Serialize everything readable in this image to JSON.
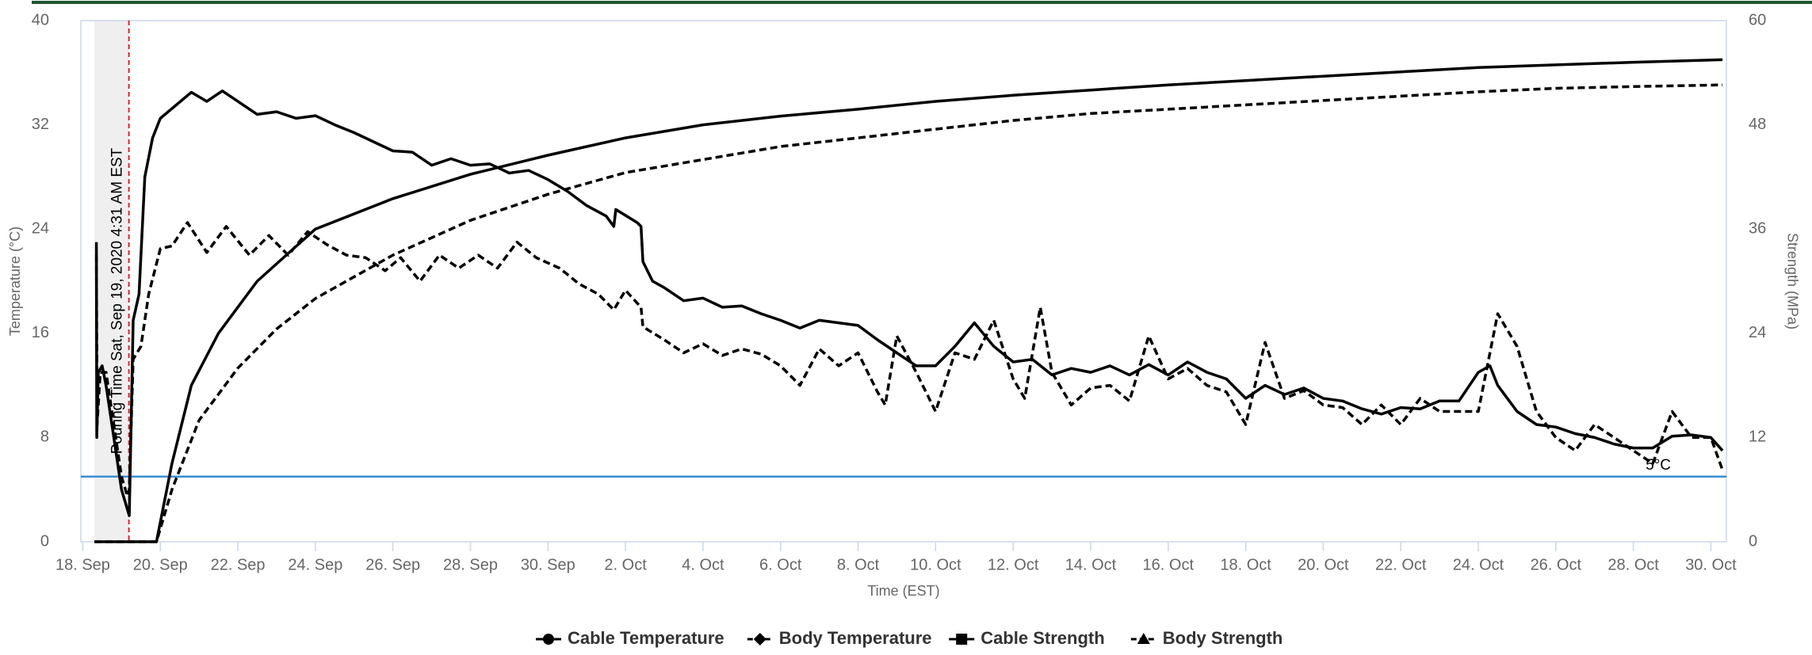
{
  "chart_data": {
    "type": "line",
    "xlabel": "Time (EST)",
    "ylabel": "Temperature (°C)",
    "y2label": "Strength (MPa)",
    "xlim": [
      17.95,
      60.4
    ],
    "xticks": [
      {
        "value": 18,
        "label": "18. Sep"
      },
      {
        "value": 20,
        "label": "20. Sep"
      },
      {
        "value": 22,
        "label": "22. Sep"
      },
      {
        "value": 24,
        "label": "24. Sep"
      },
      {
        "value": 26,
        "label": "26. Sep"
      },
      {
        "value": 28,
        "label": "28. Sep"
      },
      {
        "value": 30,
        "label": "30. Sep"
      },
      {
        "value": 32,
        "label": "2. Oct"
      },
      {
        "value": 34,
        "label": "4. Oct"
      },
      {
        "value": 36,
        "label": "6. Oct"
      },
      {
        "value": 38,
        "label": "8. Oct"
      },
      {
        "value": 40,
        "label": "10. Oct"
      },
      {
        "value": 42,
        "label": "12. Oct"
      },
      {
        "value": 44,
        "label": "14. Oct"
      },
      {
        "value": 46,
        "label": "16. Oct"
      },
      {
        "value": 48,
        "label": "18. Oct"
      },
      {
        "value": 50,
        "label": "20. Oct"
      },
      {
        "value": 52,
        "label": "22. Oct"
      },
      {
        "value": 54,
        "label": "24. Oct"
      },
      {
        "value": 56,
        "label": "26. Oct"
      },
      {
        "value": 58,
        "label": "28. Oct"
      },
      {
        "value": 60,
        "label": "30. Oct"
      }
    ],
    "ylim": [
      0,
      40
    ],
    "yticks": [
      0,
      8,
      16,
      24,
      32,
      40
    ],
    "y2lim": [
      0,
      60
    ],
    "y2ticks": [
      0,
      12,
      24,
      36,
      48,
      60
    ],
    "grid": false,
    "legend": "bottom",
    "shaded_region": [
      18.3,
      19.19
    ],
    "annotations": [
      {
        "text": "Pouring Time Sat, Sep 19, 2020 4:31 AM EST",
        "x": 19.19,
        "color": "#d62728"
      }
    ],
    "reference_lines": [
      {
        "label": "5°C",
        "value": 5,
        "color": "#3a8fd0"
      }
    ],
    "series": [
      {
        "name": "Cable Temperature",
        "color": "#000000",
        "dashed": false,
        "marker": "circle",
        "x": [
          18.35,
          18.36,
          18.4,
          18.5,
          18.6,
          18.8,
          19.0,
          19.2,
          19.3,
          19.45,
          19.6,
          19.8,
          20.0,
          20.8,
          21.2,
          21.6,
          22,
          22.5,
          23,
          23.5,
          24,
          24.5,
          25,
          25.5,
          26,
          26.5,
          27,
          27.5,
          28,
          28.5,
          29,
          29.5,
          30,
          30.5,
          31,
          31.5,
          31.7,
          31.75,
          32.3,
          32.4,
          32.45,
          32.7,
          33,
          33.5,
          34,
          34.5,
          35,
          35.5,
          36,
          36.5,
          37,
          37.5,
          38,
          38.5,
          39,
          39.5,
          40,
          40.5,
          41,
          41.5,
          42,
          42.5,
          43,
          43.5,
          44,
          44.5,
          45,
          45.5,
          46,
          46.5,
          47,
          47.5,
          48,
          48.5,
          49,
          49.5,
          50,
          50.5,
          51,
          51.5,
          52,
          52.5,
          53,
          53.5,
          54,
          54.3,
          54.5,
          55,
          55.5,
          56,
          56.5,
          57,
          57.5,
          58,
          58.5,
          59,
          59.5,
          60,
          60.3
        ],
        "values": [
          23,
          8,
          13,
          13.5,
          12,
          8,
          4,
          2,
          17,
          19,
          28,
          31,
          32.5,
          34.5,
          33.8,
          34.6,
          33.8,
          32.8,
          33,
          32.5,
          32.7,
          32,
          31.4,
          30.7,
          30,
          29.9,
          28.9,
          29.4,
          28.9,
          29,
          28.3,
          28.5,
          27.8,
          26.9,
          25.8,
          25,
          24.2,
          25.5,
          24.5,
          24.2,
          21.5,
          20,
          19.5,
          18.5,
          18.7,
          18,
          18.1,
          17.5,
          17,
          16.4,
          17,
          16.8,
          16.6,
          15.5,
          14.5,
          13.5,
          13.5,
          15,
          16.8,
          15,
          13.8,
          14,
          12.8,
          13.3,
          13,
          13.5,
          12.8,
          13.6,
          12.8,
          13.8,
          13,
          12.5,
          11,
          12,
          11.3,
          11.8,
          11,
          10.8,
          10.2,
          9.8,
          10.3,
          10.2,
          10.8,
          10.8,
          13,
          13.5,
          12,
          10,
          9,
          8.8,
          8.3,
          8,
          7.5,
          7.2,
          7.2,
          8.1,
          8.2,
          8,
          7
        ]
      },
      {
        "name": "Body Temperature",
        "color": "#000000",
        "dashed": true,
        "marker": "diamond",
        "x": [
          18.35,
          18.37,
          18.45,
          18.6,
          18.8,
          19.0,
          19.15,
          19.2,
          19.3,
          19.5,
          19.7,
          20,
          20.3,
          20.7,
          21.2,
          21.7,
          22.3,
          22.8,
          23.3,
          23.8,
          24.3,
          24.8,
          25.3,
          25.8,
          26.2,
          26.7,
          27.2,
          27.7,
          28.2,
          28.7,
          29.2,
          29.7,
          30.3,
          30.8,
          31.3,
          31.7,
          32,
          32.4,
          32.45,
          33,
          33.5,
          34,
          34.5,
          35,
          35.5,
          36,
          36.5,
          37,
          37.5,
          38,
          38.5,
          38.7,
          39,
          39.5,
          40,
          40.5,
          41,
          41.5,
          42,
          42.3,
          42.7,
          43,
          43.5,
          44,
          44.5,
          45,
          45.5,
          46,
          46.5,
          47,
          47.5,
          48,
          48.5,
          49,
          49.5,
          50,
          50.5,
          51,
          51.5,
          52,
          52.5,
          53,
          53.5,
          54,
          54.5,
          55,
          55.5,
          56,
          56.5,
          57,
          57.5,
          58,
          58.5,
          59,
          59.5,
          60,
          60.3
        ],
        "values": [
          22,
          9,
          13,
          13,
          9,
          5,
          3.5,
          4,
          14,
          15,
          19,
          22.5,
          22.7,
          24.5,
          22.2,
          24.2,
          22,
          23.5,
          22,
          23.8,
          22.8,
          22,
          21.8,
          20.8,
          21.8,
          20,
          22,
          21,
          22,
          21,
          23,
          21.8,
          21,
          19.8,
          19,
          17.8,
          19.3,
          18,
          16.5,
          15.5,
          14.5,
          15.2,
          14.3,
          14.8,
          14.4,
          13.5,
          12,
          14.8,
          13.5,
          14.5,
          11.5,
          10.5,
          15.8,
          13,
          10,
          14.5,
          14,
          17,
          12.5,
          11,
          18,
          13,
          10.5,
          11.8,
          12,
          10.8,
          15.8,
          12.5,
          13.3,
          12,
          11.5,
          9,
          15.3,
          11,
          11.6,
          10.5,
          10.3,
          9,
          10.5,
          9,
          11,
          10,
          10,
          10,
          17.5,
          15,
          10,
          8,
          7,
          9,
          8,
          7,
          6,
          10,
          8,
          8,
          5.5
        ]
      },
      {
        "name": "Cable Strength",
        "color": "#000000",
        "dashed": false,
        "marker": "square",
        "axis": "y2",
        "x": [
          18.3,
          19.9,
          20.3,
          20.8,
          21.5,
          22.5,
          24,
          26,
          28,
          30,
          32,
          34,
          36,
          38,
          40,
          42,
          44,
          46,
          48,
          50,
          52,
          54,
          56,
          58,
          60.3
        ],
        "values": [
          0,
          0,
          9,
          18,
          24,
          30,
          36,
          39.5,
          42.3,
          44.5,
          46.5,
          48,
          49,
          49.8,
          50.7,
          51.4,
          52,
          52.6,
          53.1,
          53.6,
          54.1,
          54.6,
          54.9,
          55.2,
          55.5
        ]
      },
      {
        "name": "Body Strength",
        "color": "#000000",
        "dashed": true,
        "marker": "triangle",
        "axis": "y2",
        "x": [
          18.3,
          19.9,
          20.3,
          21,
          22,
          23,
          24,
          26,
          28,
          30,
          32,
          34,
          36,
          38,
          40,
          42,
          44,
          46,
          48,
          50,
          52,
          54,
          56,
          58,
          60.3
        ],
        "values": [
          0,
          0,
          6,
          14,
          20,
          24.5,
          28,
          33,
          37,
          40,
          42.5,
          44,
          45.5,
          46.5,
          47.5,
          48.5,
          49.3,
          49.8,
          50.3,
          50.8,
          51.3,
          51.8,
          52.2,
          52.4,
          52.6
        ]
      }
    ]
  }
}
